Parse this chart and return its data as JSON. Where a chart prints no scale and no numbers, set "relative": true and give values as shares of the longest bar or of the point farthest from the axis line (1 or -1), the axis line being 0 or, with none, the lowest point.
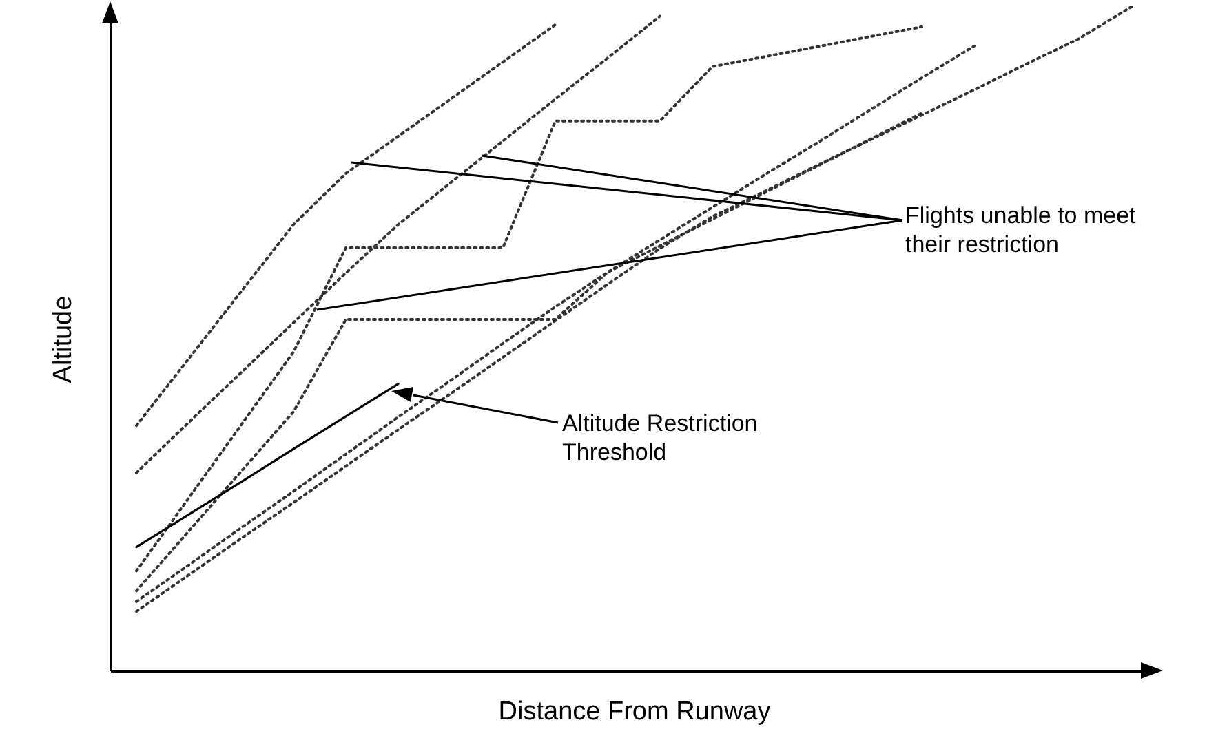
{
  "chart_data": {
    "type": "line",
    "relative": true,
    "xlabel": "Distance From Runway",
    "ylabel": "Altitude",
    "grid": false,
    "marker": "none",
    "line_style": "dotted",
    "categories": [
      null,
      null,
      null,
      null,
      null,
      null,
      null,
      null,
      null,
      null,
      null,
      null,
      null,
      null,
      null,
      null,
      null,
      null,
      null,
      null
    ],
    "series": [
      {
        "color": "#333333",
        "values": [
          0.089,
          0.144,
          0.199,
          0.253,
          0.308,
          0.363,
          0.417,
          0.472,
          0.527,
          0.582,
          0.636,
          0.684,
          0.722,
          0.761,
          0.799,
          0.837,
          0.875,
          0.914,
          0.952,
          1
        ]
      },
      {
        "color": "#333333",
        "values": [
          0.104,
          0.159,
          0.215,
          0.27,
          0.326,
          0.382,
          0.437,
          0.493,
          0.548,
          0.6,
          0.649,
          0.698,
          0.747,
          0.795,
          0.844,
          0.893,
          0.941,
          null,
          null,
          null
        ]
      },
      {
        "color": "#333333",
        "values": [
          0.369,
          0.47,
          0.571,
          0.672,
          0.749,
          0.805,
          0.861,
          0.917,
          0.973,
          null,
          null,
          null,
          null,
          null,
          null,
          null,
          null,
          null,
          null,
          null
        ]
      },
      {
        "color": "#333333",
        "values": [
          0.298,
          0.374,
          0.449,
          0.524,
          0.599,
          0.672,
          0.735,
          0.798,
          0.861,
          0.923,
          0.986,
          null,
          null,
          null,
          null,
          null,
          null,
          null,
          null,
          null
        ]
      },
      {
        "color": "#333333",
        "values": [
          0.15,
          0.26,
          0.37,
          0.48,
          0.637,
          0.637,
          0.637,
          0.637,
          0.828,
          0.828,
          0.828,
          0.91,
          0.925,
          0.94,
          0.955,
          0.97,
          null,
          null,
          null,
          null
        ]
      },
      {
        "color": "#333333",
        "values": [
          0.12,
          0.21,
          0.3,
          0.39,
          0.529,
          0.529,
          0.529,
          0.529,
          0.529,
          0.6,
          0.64,
          0.68,
          0.72,
          0.76,
          0.8,
          0.84,
          null,
          null,
          null,
          null
        ]
      },
      {
        "color": "#000000",
        "line_style": "solid",
        "values": [
          0.186,
          0.235,
          0.284,
          0.334,
          0.383,
          0.432,
          null,
          null,
          null,
          null,
          null,
          null,
          null,
          null,
          null,
          null,
          null,
          null,
          null,
          null
        ]
      }
    ],
    "annotations": [
      "Flights unable to meet their restriction",
      "Altitude Restriction Threshold"
    ]
  }
}
